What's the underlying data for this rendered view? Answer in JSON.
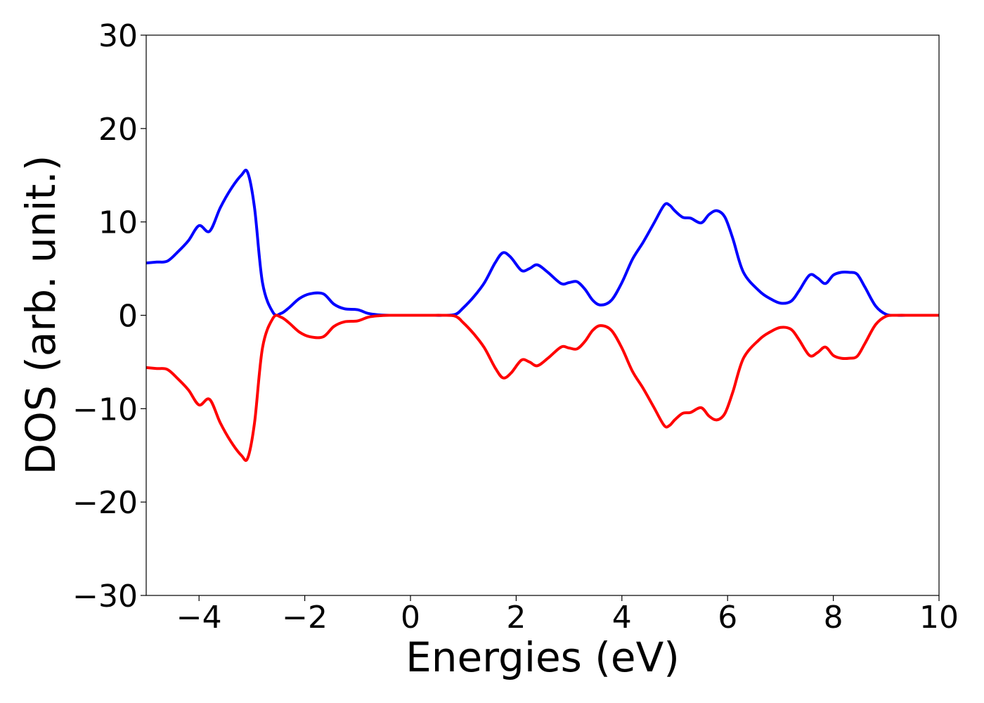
{
  "chart_data": {
    "type": "line",
    "title": "",
    "xlabel": "Energies (eV)",
    "ylabel": "DOS (arb. unit.)",
    "xlim": [
      -5,
      10
    ],
    "ylim": [
      -30,
      30
    ],
    "xticks": [
      -4,
      -2,
      0,
      2,
      4,
      6,
      8,
      10
    ],
    "xtick_labels": [
      "−4",
      "−2",
      "0",
      "2",
      "4",
      "6",
      "8",
      "10"
    ],
    "yticks": [
      -30,
      -20,
      -10,
      0,
      10,
      20,
      30
    ],
    "ytick_labels": [
      "−30",
      "−20",
      "−10",
      "0",
      "10",
      "20",
      "30"
    ],
    "grid": false,
    "legend": "none",
    "x": [
      -5.0,
      -4.8,
      -4.6,
      -4.4,
      -4.2,
      -4.0,
      -3.8,
      -3.6,
      -3.4,
      -3.2,
      -3.08,
      -2.95,
      -2.8,
      -2.6,
      -2.45,
      -2.3,
      -2.1,
      -1.9,
      -1.65,
      -1.45,
      -1.25,
      -1.0,
      -0.8,
      -0.6,
      -0.4,
      -0.2,
      0.0,
      0.2,
      0.4,
      0.6,
      0.85,
      1.0,
      1.2,
      1.4,
      1.6,
      1.75,
      1.9,
      2.1,
      2.25,
      2.4,
      2.6,
      2.85,
      3.0,
      3.15,
      3.3,
      3.45,
      3.6,
      3.8,
      4.0,
      4.2,
      4.4,
      4.6,
      4.8,
      4.9,
      5.0,
      5.15,
      5.3,
      5.5,
      5.65,
      5.8,
      5.95,
      6.1,
      6.3,
      6.6,
      6.8,
      7.0,
      7.2,
      7.35,
      7.55,
      7.7,
      7.85,
      8.0,
      8.15,
      8.3,
      8.45,
      8.6,
      8.8,
      9.0,
      9.2,
      9.5,
      10.0
    ],
    "series": [
      {
        "color": "#0000ff",
        "values": [
          5.6,
          5.7,
          5.8,
          6.8,
          8.0,
          9.6,
          9.0,
          11.5,
          13.5,
          15.0,
          15.3,
          11.5,
          3.5,
          0.3,
          0.2,
          0.8,
          1.8,
          2.3,
          2.3,
          1.2,
          0.7,
          0.6,
          0.2,
          0.05,
          0.0,
          0.0,
          0.0,
          0.0,
          0.0,
          0.0,
          0.1,
          0.8,
          2.0,
          3.5,
          5.6,
          6.7,
          6.2,
          4.8,
          5.0,
          5.4,
          4.6,
          3.4,
          3.5,
          3.6,
          2.8,
          1.6,
          1.1,
          1.6,
          3.5,
          6.0,
          7.8,
          9.8,
          11.8,
          11.8,
          11.2,
          10.5,
          10.4,
          9.9,
          10.8,
          11.2,
          10.5,
          8.2,
          4.6,
          2.6,
          1.8,
          1.3,
          1.5,
          2.6,
          4.3,
          4.0,
          3.4,
          4.3,
          4.6,
          4.6,
          4.4,
          3.0,
          1.0,
          0.1,
          0.0,
          0.0,
          0.0
        ]
      },
      {
        "color": "#ff0000",
        "values": [
          -5.6,
          -5.7,
          -5.8,
          -6.8,
          -8.0,
          -9.6,
          -9.0,
          -11.5,
          -13.5,
          -15.0,
          -15.3,
          -11.5,
          -3.5,
          -0.3,
          -0.2,
          -0.8,
          -1.8,
          -2.3,
          -2.3,
          -1.2,
          -0.7,
          -0.6,
          -0.2,
          -0.05,
          0.0,
          0.0,
          0.0,
          0.0,
          0.0,
          0.0,
          -0.1,
          -0.8,
          -2.0,
          -3.5,
          -5.6,
          -6.7,
          -6.2,
          -4.8,
          -5.0,
          -5.4,
          -4.6,
          -3.4,
          -3.5,
          -3.6,
          -2.8,
          -1.6,
          -1.1,
          -1.6,
          -3.5,
          -6.0,
          -7.8,
          -9.8,
          -11.8,
          -11.8,
          -11.2,
          -10.5,
          -10.4,
          -9.9,
          -10.8,
          -11.2,
          -10.5,
          -8.2,
          -4.6,
          -2.6,
          -1.8,
          -1.3,
          -1.5,
          -2.6,
          -4.3,
          -4.0,
          -3.4,
          -4.3,
          -4.6,
          -4.6,
          -4.4,
          -3.0,
          -1.0,
          -0.1,
          0.0,
          0.0,
          0.0
        ]
      }
    ]
  }
}
